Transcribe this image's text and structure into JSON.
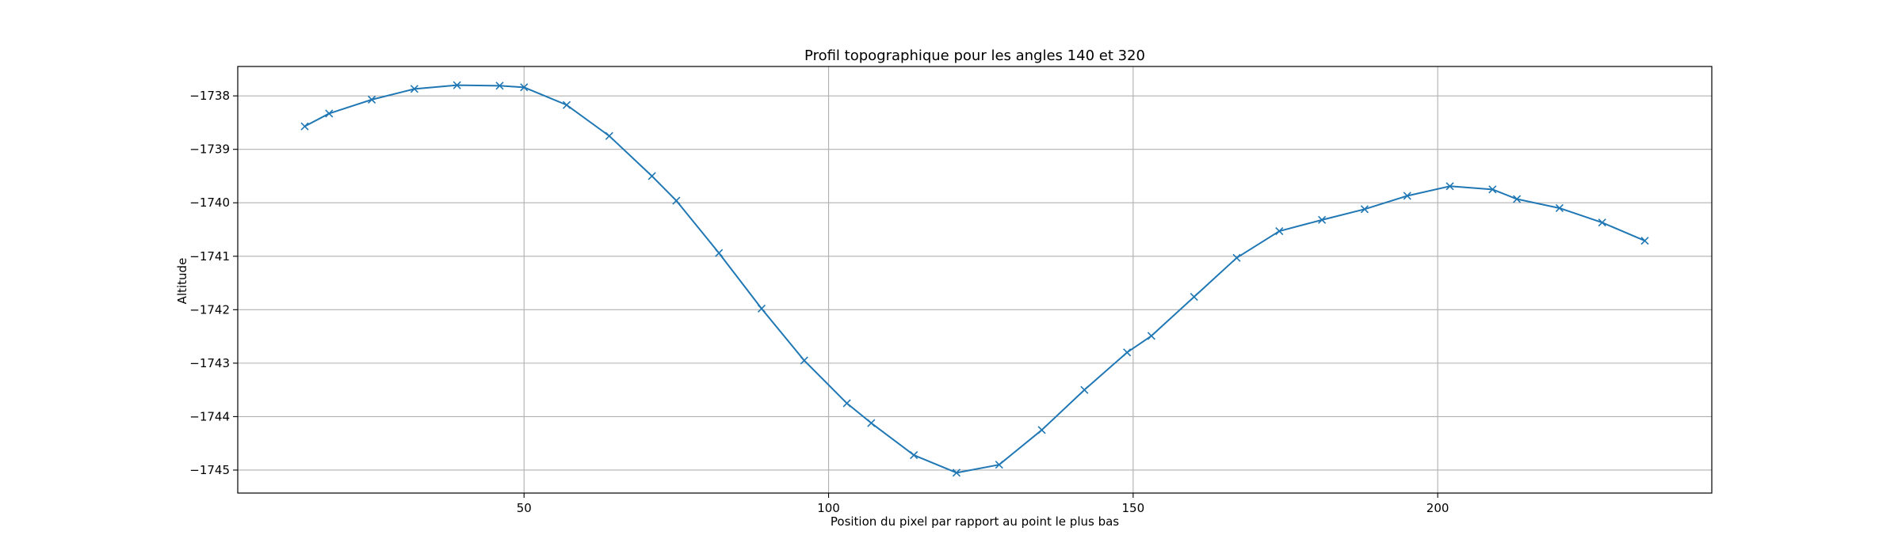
{
  "chart_data": {
    "type": "line",
    "title": "Profil topographique pour les angles 140 et 320",
    "xlabel": "Position du pixel par rapport au point le plus bas",
    "ylabel": "Altitude",
    "xlim": [
      3,
      245
    ],
    "ylim": [
      -1745.43,
      -1737.45
    ],
    "x_ticks": [
      50,
      100,
      150,
      200
    ],
    "x_tick_labels": [
      "50",
      "100",
      "150",
      "200"
    ],
    "y_ticks": [
      -1738,
      -1739,
      -1740,
      -1741,
      -1742,
      -1743,
      -1744,
      -1745
    ],
    "y_tick_labels": [
      "−1738",
      "−1739",
      "−1740",
      "−1741",
      "−1742",
      "−1743",
      "−1744",
      "−1745"
    ],
    "grid": true,
    "marker": "x",
    "series": [
      {
        "color": "#1f77b4",
        "x": [
          14,
          18,
          25,
          32,
          39,
          46,
          50,
          57,
          64,
          71,
          75,
          82,
          89,
          96,
          103,
          107,
          114,
          121,
          128,
          135,
          142,
          149,
          153,
          160,
          167,
          174,
          181,
          188,
          195,
          202,
          209,
          213,
          220,
          227,
          234
        ],
        "y": [
          -1738.57,
          -1738.33,
          -1738.07,
          -1737.87,
          -1737.8,
          -1737.81,
          -1737.84,
          -1738.17,
          -1738.75,
          -1739.5,
          -1739.96,
          -1740.94,
          -1741.98,
          -1742.95,
          -1743.75,
          -1744.12,
          -1744.72,
          -1745.05,
          -1744.9,
          -1744.25,
          -1743.5,
          -1742.8,
          -1742.49,
          -1741.76,
          -1741.03,
          -1740.53,
          -1740.32,
          -1740.12,
          -1739.87,
          -1739.69,
          -1739.75,
          -1739.93,
          -1740.1,
          -1740.37,
          -1740.71
        ]
      }
    ]
  }
}
